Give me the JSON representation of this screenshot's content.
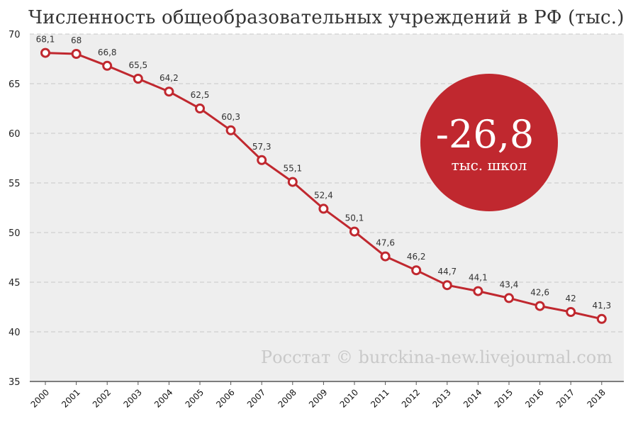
{
  "title": "Численность общеобразовательных учреждений в РФ (тыс.)",
  "badge": {
    "value": "-26,8",
    "unit": "тыс. школ"
  },
  "watermark": "Росстат © burckina-new.livejournal.com",
  "colors": {
    "plot_background": "#eeeeee",
    "line": "#c0282f",
    "badge": "#c0282f",
    "grid": "#c8c8c8",
    "watermark": "#c9c9c9"
  },
  "chart_data": {
    "type": "line",
    "title": "Численность общеобразовательных учреждений в РФ (тыс.)",
    "xlabel": "",
    "ylabel": "",
    "ylim": [
      35,
      70
    ],
    "yticks": [
      35,
      40,
      45,
      50,
      55,
      60,
      65,
      70
    ],
    "grid": true,
    "legend": "none",
    "categories": [
      "2000",
      "2001",
      "2002",
      "2003",
      "2004",
      "2005",
      "2006",
      "2007",
      "2008",
      "2009",
      "2010",
      "2011",
      "2012",
      "2013",
      "2014",
      "2015",
      "2016",
      "2017",
      "2018"
    ],
    "series": [
      {
        "values": [
          68.1,
          68,
          66.8,
          65.5,
          64.2,
          62.5,
          60.3,
          57.3,
          55.1,
          52.4,
          50.1,
          47.6,
          46.2,
          44.7,
          44.1,
          43.4,
          42.6,
          42,
          41.3
        ],
        "labels": [
          "68,1",
          "68",
          "66,8",
          "65,5",
          "64,2",
          "62,5",
          "60,3",
          "57,3",
          "55,1",
          "52,4",
          "50,1",
          "47,6",
          "46,2",
          "44,7",
          "44,1",
          "43,4",
          "42,6",
          "42",
          "41,3"
        ]
      }
    ]
  }
}
